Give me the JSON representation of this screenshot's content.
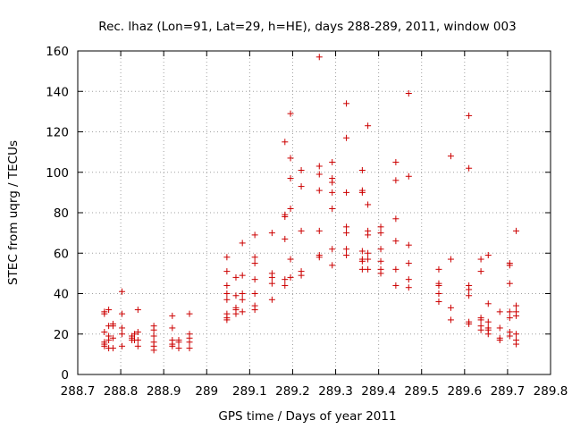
{
  "chart_data": {
    "type": "scatter",
    "title": "Rec. lhaz (Lon=91, Lat=29, h=HE), days 288-289, 2011, window 003",
    "xlabel": "GPS time / Days of year 2011",
    "ylabel": "STEC from uqrg / TECUs",
    "xlim": [
      288.7,
      289.8
    ],
    "ylim": [
      0,
      160
    ],
    "x_ticks": [
      "288.7",
      "288.8",
      "288.9",
      "289",
      "289.1",
      "289.2",
      "289.3",
      "289.4",
      "289.5",
      "289.6",
      "289.7",
      "289.8"
    ],
    "y_ticks": [
      "0",
      "20",
      "40",
      "60",
      "80",
      "100",
      "120",
      "140",
      "160"
    ],
    "grid": true,
    "marker": "+",
    "color": "#cc0000",
    "series": [
      {
        "points": [
          [
            288.762,
            30
          ],
          [
            288.762,
            31
          ],
          [
            288.762,
            21
          ],
          [
            288.762,
            16
          ],
          [
            288.762,
            15
          ],
          [
            288.762,
            14
          ],
          [
            288.772,
            32
          ],
          [
            288.772,
            24
          ],
          [
            288.772,
            19
          ],
          [
            288.772,
            17
          ],
          [
            288.772,
            13
          ],
          [
            288.782,
            25
          ],
          [
            288.782,
            24
          ],
          [
            288.782,
            18
          ],
          [
            288.782,
            13
          ],
          [
            288.803,
            41
          ],
          [
            288.803,
            30
          ],
          [
            288.803,
            23
          ],
          [
            288.803,
            20
          ],
          [
            288.803,
            14
          ],
          [
            288.826,
            19
          ],
          [
            288.826,
            18
          ],
          [
            288.826,
            17
          ],
          [
            288.832,
            20
          ],
          [
            288.832,
            17
          ],
          [
            288.84,
            32
          ],
          [
            288.84,
            21
          ],
          [
            288.84,
            17
          ],
          [
            288.84,
            14
          ],
          [
            288.877,
            24
          ],
          [
            288.877,
            22
          ],
          [
            288.877,
            19
          ],
          [
            288.877,
            16
          ],
          [
            288.877,
            14
          ],
          [
            288.877,
            12
          ],
          [
            288.92,
            29
          ],
          [
            288.92,
            23
          ],
          [
            288.92,
            17
          ],
          [
            288.92,
            15
          ],
          [
            288.92,
            14
          ],
          [
            288.935,
            17
          ],
          [
            288.935,
            16
          ],
          [
            288.935,
            13
          ],
          [
            288.96,
            30
          ],
          [
            288.96,
            20
          ],
          [
            288.96,
            18
          ],
          [
            288.96,
            16
          ],
          [
            288.96,
            13
          ],
          [
            289.047,
            58
          ],
          [
            289.047,
            51
          ],
          [
            289.047,
            44
          ],
          [
            289.047,
            40
          ],
          [
            289.047,
            37
          ],
          [
            289.047,
            30
          ],
          [
            289.047,
            28
          ],
          [
            289.047,
            27
          ],
          [
            289.068,
            48
          ],
          [
            289.068,
            39
          ],
          [
            289.068,
            33
          ],
          [
            289.068,
            32
          ],
          [
            289.068,
            30
          ],
          [
            289.083,
            65
          ],
          [
            289.083,
            49
          ],
          [
            289.083,
            40
          ],
          [
            289.083,
            37
          ],
          [
            289.083,
            31
          ],
          [
            289.112,
            69
          ],
          [
            289.112,
            58
          ],
          [
            289.112,
            55
          ],
          [
            289.112,
            47
          ],
          [
            289.112,
            40
          ],
          [
            289.112,
            34
          ],
          [
            289.112,
            32
          ],
          [
            289.152,
            70
          ],
          [
            289.152,
            50
          ],
          [
            289.152,
            48
          ],
          [
            289.152,
            45
          ],
          [
            289.152,
            37
          ],
          [
            289.182,
            115
          ],
          [
            289.182,
            79
          ],
          [
            289.182,
            78
          ],
          [
            289.182,
            67
          ],
          [
            289.182,
            47
          ],
          [
            289.182,
            44
          ],
          [
            289.195,
            129
          ],
          [
            289.195,
            107
          ],
          [
            289.195,
            97
          ],
          [
            289.195,
            82
          ],
          [
            289.195,
            57
          ],
          [
            289.195,
            48
          ],
          [
            289.22,
            101
          ],
          [
            289.22,
            93
          ],
          [
            289.22,
            71
          ],
          [
            289.22,
            51
          ],
          [
            289.22,
            49
          ],
          [
            289.262,
            157
          ],
          [
            289.262,
            103
          ],
          [
            289.262,
            99
          ],
          [
            289.262,
            91
          ],
          [
            289.262,
            71
          ],
          [
            289.262,
            59
          ],
          [
            289.262,
            58
          ],
          [
            289.292,
            105
          ],
          [
            289.292,
            97
          ],
          [
            289.292,
            95
          ],
          [
            289.292,
            90
          ],
          [
            289.292,
            82
          ],
          [
            289.292,
            62
          ],
          [
            289.292,
            54
          ],
          [
            289.325,
            134
          ],
          [
            289.325,
            117
          ],
          [
            289.325,
            90
          ],
          [
            289.325,
            73
          ],
          [
            289.325,
            70
          ],
          [
            289.325,
            62
          ],
          [
            289.325,
            59
          ],
          [
            289.362,
            101
          ],
          [
            289.362,
            91
          ],
          [
            289.362,
            90
          ],
          [
            289.362,
            61
          ],
          [
            289.362,
            57
          ],
          [
            289.362,
            56
          ],
          [
            289.362,
            52
          ],
          [
            289.375,
            123
          ],
          [
            289.375,
            84
          ],
          [
            289.375,
            71
          ],
          [
            289.375,
            69
          ],
          [
            289.375,
            60
          ],
          [
            289.375,
            57
          ],
          [
            289.375,
            52
          ],
          [
            289.405,
            73
          ],
          [
            289.405,
            70
          ],
          [
            289.405,
            62
          ],
          [
            289.405,
            56
          ],
          [
            289.405,
            52
          ],
          [
            289.405,
            50
          ],
          [
            289.44,
            105
          ],
          [
            289.44,
            96
          ],
          [
            289.44,
            77
          ],
          [
            289.44,
            66
          ],
          [
            289.44,
            52
          ],
          [
            289.44,
            44
          ],
          [
            289.47,
            139
          ],
          [
            289.47,
            98
          ],
          [
            289.47,
            64
          ],
          [
            289.47,
            55
          ],
          [
            289.47,
            47
          ],
          [
            289.47,
            43
          ],
          [
            289.54,
            52
          ],
          [
            289.54,
            45
          ],
          [
            289.54,
            44
          ],
          [
            289.54,
            40
          ],
          [
            289.54,
            36
          ],
          [
            289.568,
            108
          ],
          [
            289.568,
            57
          ],
          [
            289.568,
            33
          ],
          [
            289.568,
            27
          ],
          [
            289.61,
            128
          ],
          [
            289.61,
            102
          ],
          [
            289.61,
            44
          ],
          [
            289.61,
            42
          ],
          [
            289.61,
            39
          ],
          [
            289.61,
            26
          ],
          [
            289.61,
            25
          ],
          [
            289.638,
            57
          ],
          [
            289.638,
            51
          ],
          [
            289.638,
            28
          ],
          [
            289.638,
            27
          ],
          [
            289.638,
            24
          ],
          [
            289.638,
            22
          ],
          [
            289.655,
            59
          ],
          [
            289.655,
            35
          ],
          [
            289.655,
            26
          ],
          [
            289.655,
            23
          ],
          [
            289.655,
            22
          ],
          [
            289.655,
            20
          ],
          [
            289.682,
            31
          ],
          [
            289.682,
            23
          ],
          [
            289.682,
            18
          ],
          [
            289.682,
            17
          ],
          [
            289.705,
            55
          ],
          [
            289.705,
            54
          ],
          [
            289.705,
            45
          ],
          [
            289.705,
            31
          ],
          [
            289.705,
            28
          ],
          [
            289.705,
            21
          ],
          [
            289.705,
            19
          ],
          [
            289.72,
            71
          ],
          [
            289.72,
            34
          ],
          [
            289.72,
            31
          ],
          [
            289.72,
            29
          ],
          [
            289.72,
            20
          ],
          [
            289.72,
            17
          ],
          [
            289.72,
            15
          ]
        ]
      }
    ]
  }
}
